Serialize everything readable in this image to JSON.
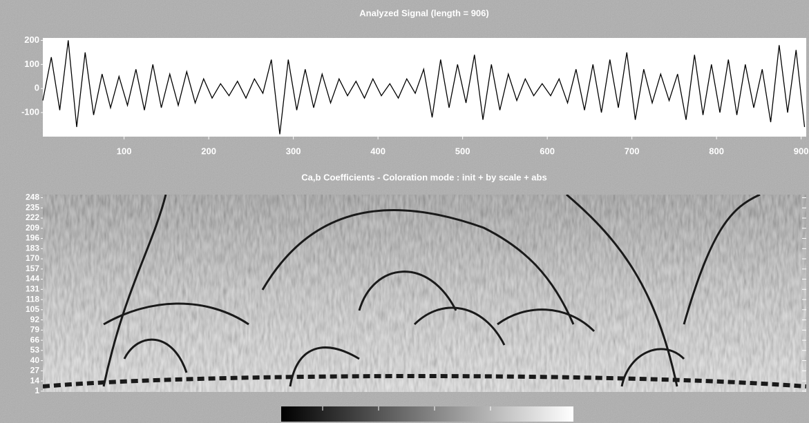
{
  "chart_data": [
    {
      "type": "line",
      "title": "Analyzed Signal  (length = 906)",
      "color": "#000000",
      "x": [
        4,
        14,
        24,
        34,
        44,
        54,
        64,
        74,
        84,
        94,
        104,
        114,
        124,
        134,
        144,
        154,
        164,
        174,
        184,
        194,
        204,
        214,
        224,
        234,
        244,
        254,
        264,
        274,
        284,
        294,
        304,
        314,
        324,
        334,
        344,
        354,
        364,
        374,
        384,
        394,
        404,
        414,
        424,
        434,
        444,
        454,
        464,
        474,
        484,
        494,
        504,
        514,
        524,
        534,
        544,
        554,
        564,
        574,
        584,
        594,
        604,
        614,
        624,
        634,
        644,
        654,
        664,
        674,
        684,
        694,
        704,
        714,
        724,
        734,
        744,
        754,
        764,
        774,
        784,
        794,
        804,
        814,
        824,
        834,
        844,
        854,
        864,
        874,
        884,
        894,
        904
      ],
      "values": [
        -50,
        130,
        -90,
        200,
        -160,
        150,
        -110,
        60,
        -80,
        50,
        -70,
        80,
        -90,
        100,
        -80,
        60,
        -70,
        70,
        -60,
        40,
        -40,
        20,
        -30,
        30,
        -40,
        40,
        -20,
        120,
        -190,
        120,
        -90,
        80,
        -80,
        60,
        -60,
        40,
        -30,
        30,
        -40,
        40,
        -30,
        20,
        -40,
        40,
        -20,
        80,
        -120,
        120,
        -80,
        100,
        -60,
        140,
        -130,
        100,
        -90,
        60,
        -50,
        40,
        -30,
        20,
        -30,
        40,
        -60,
        80,
        -90,
        100,
        -100,
        120,
        -80,
        150,
        -130,
        80,
        -60,
        60,
        -50,
        60,
        -130,
        140,
        -110,
        100,
        -100,
        120,
        -110,
        100,
        -80,
        80,
        -140,
        180,
        -100,
        160,
        -160
      ],
      "xlim": [
        4,
        906
      ],
      "xticks": [
        100,
        200,
        300,
        400,
        500,
        600,
        700,
        800,
        900
      ],
      "ylim": [
        -200,
        210
      ],
      "yticks": [
        200,
        100,
        0,
        -100
      ]
    },
    {
      "type": "heatmap",
      "title": "Ca,b Coefficients  - Coloration mode : init + by scale + abs",
      "ylim": [
        0,
        252
      ],
      "yticks": [
        248,
        235,
        222,
        209,
        196,
        183,
        170,
        157,
        144,
        131,
        118,
        105,
        92,
        79,
        66,
        53,
        40,
        27,
        14,
        1
      ]
    }
  ]
}
